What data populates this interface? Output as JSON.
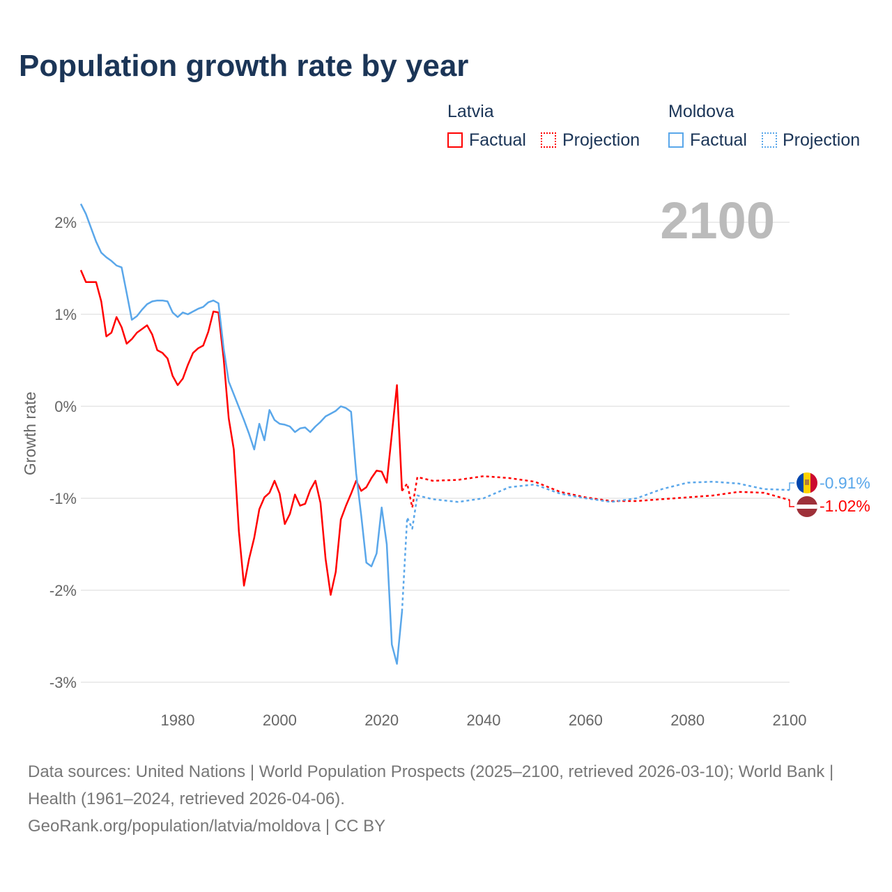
{
  "title": "Population growth rate by year",
  "legend": {
    "groups": [
      {
        "country": "Latvia",
        "factual": "Factual",
        "projection": "Projection",
        "color": "#ff0000"
      },
      {
        "country": "Moldova",
        "factual": "Factual",
        "projection": "Projection",
        "color": "#5aa7ea"
      }
    ]
  },
  "year_label": "2100",
  "end_labels": {
    "moldova": "-0.91%",
    "latvia": "-1.02%"
  },
  "footer": {
    "line1": "Data sources: United Nations | World Population Prospects (2025–2100, retrieved 2026-03-10); World Bank | Health (1961–2024, retrieved 2026-04-06).",
    "line2": "GeoRank.org/population/latvia/moldova | CC BY"
  },
  "chart_data": {
    "type": "line",
    "title": "Population growth rate by year",
    "xlabel": "",
    "ylabel": "Growth rate",
    "xlim": [
      1961,
      2100
    ],
    "ylim": [
      -3.3,
      2.3
    ],
    "xticks": [
      1980,
      2000,
      2020,
      2040,
      2060,
      2080,
      2100
    ],
    "yticks": [
      {
        "v": 2,
        "label": "2%"
      },
      {
        "v": 1,
        "label": "1%"
      },
      {
        "v": 0,
        "label": "0%"
      },
      {
        "v": -1,
        "label": "-1%"
      },
      {
        "v": -2,
        "label": "-2%"
      },
      {
        "v": -3,
        "label": "-3%"
      }
    ],
    "series": [
      {
        "name": "Latvia Factual",
        "color": "#ff0000",
        "dashed": false,
        "x": [
          1961,
          1962,
          1963,
          1964,
          1965,
          1966,
          1967,
          1968,
          1969,
          1970,
          1971,
          1972,
          1973,
          1974,
          1975,
          1976,
          1977,
          1978,
          1979,
          1980,
          1981,
          1982,
          1983,
          1984,
          1985,
          1986,
          1987,
          1988,
          1989,
          1990,
          1991,
          1992,
          1993,
          1994,
          1995,
          1996,
          1997,
          1998,
          1999,
          2000,
          2001,
          2002,
          2003,
          2004,
          2005,
          2006,
          2007,
          2008,
          2009,
          2010,
          2011,
          2012,
          2013,
          2014,
          2015,
          2016,
          2017,
          2018,
          2019,
          2020,
          2021,
          2022,
          2023,
          2024
        ],
        "y": [
          1.48,
          1.35,
          1.35,
          1.35,
          1.14,
          0.76,
          0.8,
          0.97,
          0.86,
          0.68,
          0.73,
          0.8,
          0.84,
          0.88,
          0.78,
          0.61,
          0.58,
          0.52,
          0.33,
          0.23,
          0.3,
          0.45,
          0.58,
          0.63,
          0.66,
          0.81,
          1.03,
          1.02,
          0.52,
          -0.13,
          -0.47,
          -1.36,
          -1.95,
          -1.66,
          -1.43,
          -1.12,
          -0.99,
          -0.94,
          -0.81,
          -0.95,
          -1.28,
          -1.17,
          -0.96,
          -1.08,
          -1.06,
          -0.91,
          -0.81,
          -1.05,
          -1.66,
          -2.05,
          -1.8,
          -1.23,
          -1.08,
          -0.95,
          -0.81,
          -0.92,
          -0.88,
          -0.78,
          -0.7,
          -0.71,
          -0.83,
          -0.3,
          0.23,
          -0.92
        ]
      },
      {
        "name": "Latvia Projection",
        "color": "#ff0000",
        "dashed": true,
        "x": [
          2024,
          2025,
          2026,
          2027,
          2030,
          2035,
          2040,
          2045,
          2050,
          2055,
          2060,
          2065,
          2070,
          2075,
          2080,
          2085,
          2090,
          2095,
          2100
        ],
        "y": [
          -0.92,
          -0.84,
          -1.1,
          -0.77,
          -0.81,
          -0.8,
          -0.76,
          -0.78,
          -0.82,
          -0.93,
          -0.99,
          -1.03,
          -1.03,
          -1.01,
          -0.99,
          -0.97,
          -0.93,
          -0.94,
          -1.02
        ]
      },
      {
        "name": "Moldova Factual",
        "color": "#5aa7ea",
        "dashed": false,
        "x": [
          1961,
          1962,
          1963,
          1964,
          1965,
          1966,
          1967,
          1968,
          1969,
          1970,
          1971,
          1972,
          1973,
          1974,
          1975,
          1976,
          1977,
          1978,
          1979,
          1980,
          1981,
          1982,
          1983,
          1984,
          1985,
          1986,
          1987,
          1988,
          1989,
          1990,
          1991,
          1992,
          1993,
          1994,
          1995,
          1996,
          1997,
          1998,
          1999,
          2000,
          2001,
          2002,
          2003,
          2004,
          2005,
          2006,
          2007,
          2008,
          2009,
          2010,
          2011,
          2012,
          2013,
          2014,
          2015,
          2016,
          2017,
          2018,
          2019,
          2020,
          2021,
          2022,
          2023,
          2024
        ],
        "y": [
          2.2,
          2.09,
          1.94,
          1.79,
          1.67,
          1.62,
          1.58,
          1.53,
          1.51,
          1.23,
          0.94,
          0.98,
          1.05,
          1.11,
          1.14,
          1.15,
          1.15,
          1.14,
          1.02,
          0.97,
          1.02,
          1.0,
          1.03,
          1.06,
          1.08,
          1.13,
          1.15,
          1.12,
          0.63,
          0.27,
          0.13,
          -0.01,
          -0.15,
          -0.3,
          -0.47,
          -0.19,
          -0.37,
          -0.04,
          -0.15,
          -0.19,
          -0.2,
          -0.22,
          -0.28,
          -0.24,
          -0.23,
          -0.28,
          -0.22,
          -0.17,
          -0.11,
          -0.08,
          -0.05,
          0.0,
          -0.02,
          -0.06,
          -0.73,
          -1.19,
          -1.7,
          -1.74,
          -1.6,
          -1.1,
          -1.5,
          -2.59,
          -2.8,
          -2.23
        ]
      },
      {
        "name": "Moldova Projection",
        "color": "#5aa7ea",
        "dashed": true,
        "x": [
          2024,
          2025,
          2026,
          2027,
          2030,
          2035,
          2040,
          2045,
          2050,
          2055,
          2060,
          2065,
          2070,
          2075,
          2080,
          2085,
          2090,
          2095,
          2100
        ],
        "y": [
          -2.23,
          -1.21,
          -1.33,
          -0.97,
          -1.01,
          -1.04,
          -1.0,
          -0.88,
          -0.85,
          -0.95,
          -1.0,
          -1.04,
          -1.0,
          -0.9,
          -0.83,
          -0.82,
          -0.84,
          -0.9,
          -0.91
        ]
      }
    ]
  }
}
